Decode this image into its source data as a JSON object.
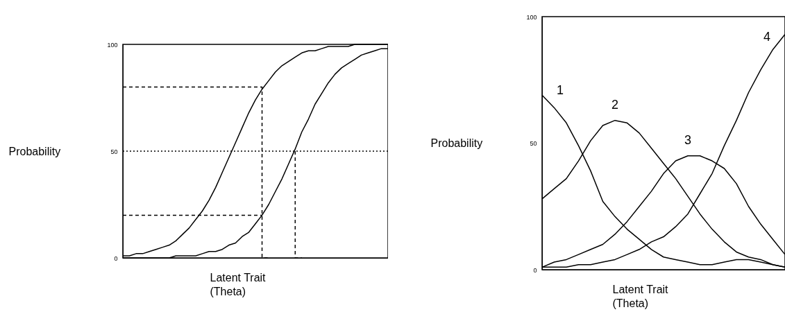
{
  "chart_data": [
    {
      "type": "line",
      "ylabel": "Probability",
      "xlabel": "Latent Trait\n(Theta)",
      "ylim": [
        0,
        100
      ],
      "yticks": [
        0,
        50,
        100
      ],
      "tick_labels": "y",
      "grid": false,
      "marker": "none",
      "categories": [
        null,
        null,
        null,
        null,
        null,
        null,
        null,
        null,
        null,
        null,
        null,
        null,
        null,
        null,
        null,
        null,
        null,
        null,
        null,
        null,
        null,
        null,
        null,
        null,
        null,
        null,
        null,
        null,
        null,
        null,
        null,
        null,
        null,
        null,
        null,
        null,
        null,
        null,
        null,
        null,
        null
      ],
      "series": [
        {
          "color": "#000000",
          "values": [
            1,
            1,
            2,
            2,
            3,
            4,
            5,
            6,
            8,
            11,
            14,
            18,
            22,
            27,
            33,
            40,
            47,
            54,
            61,
            68,
            74,
            79,
            83,
            87,
            90,
            92,
            94,
            96,
            97,
            97,
            98,
            99,
            99,
            99,
            99,
            100,
            100,
            100,
            100,
            100,
            100
          ]
        },
        {
          "color": "#000000",
          "values": [
            0,
            0,
            0,
            0,
            0,
            0,
            0,
            0,
            1,
            1,
            1,
            1,
            2,
            3,
            3,
            4,
            6,
            7,
            10,
            12,
            16,
            20,
            25,
            31,
            37,
            44,
            51,
            59,
            65,
            72,
            77,
            82,
            86,
            89,
            91,
            93,
            95,
            96,
            97,
            98,
            98
          ]
        },
        {
          "type": "step",
          "color": "#000000",
          "line_style": "dashed",
          "values": [
            80,
            80,
            80,
            80,
            80,
            80,
            80,
            80,
            80,
            80,
            80,
            80,
            80,
            80,
            80,
            80,
            80,
            80,
            80,
            80,
            80,
            80,
            0,
            null,
            null,
            null,
            null,
            null,
            null,
            null,
            null,
            null,
            null,
            null,
            null,
            null,
            null,
            null,
            null,
            null,
            null
          ]
        },
        {
          "color": "#000000",
          "line_style": "dashed",
          "values": [
            20,
            20,
            20,
            20,
            20,
            20,
            20,
            20,
            20,
            20,
            20,
            20,
            20,
            20,
            20,
            20,
            20,
            20,
            20,
            20,
            20,
            20,
            null,
            null,
            null,
            null,
            null,
            null,
            null,
            null,
            null,
            null,
            null,
            null,
            null,
            null,
            null,
            null,
            null,
            null,
            null
          ]
        },
        {
          "type": "step",
          "color": "#000000",
          "line_style": "dashed",
          "values": [
            null,
            null,
            null,
            null,
            null,
            null,
            null,
            null,
            null,
            null,
            null,
            null,
            null,
            null,
            null,
            null,
            null,
            null,
            null,
            null,
            null,
            null,
            null,
            null,
            null,
            null,
            50,
            0,
            null,
            null,
            null,
            null,
            null,
            null,
            null,
            null,
            null,
            null,
            null,
            null,
            null
          ]
        }
      ],
      "ref_lines": [
        {
          "axis": "y",
          "value": 50,
          "color": "#000000",
          "line_style": "dotted"
        }
      ]
    },
    {
      "type": "line",
      "ylabel": "Probability",
      "xlabel": "Latent Trait\n(Theta)",
      "ylim": [
        0,
        100
      ],
      "yticks": [
        0,
        50,
        100
      ],
      "tick_labels": "y",
      "grid": false,
      "marker": "none",
      "categories": [
        null,
        null,
        null,
        null,
        null,
        null,
        null,
        null,
        null,
        null,
        null,
        null,
        null,
        null,
        null,
        null,
        null,
        null,
        null,
        null,
        null
      ],
      "series": [
        {
          "name": "1",
          "color": "#000000",
          "values": [
            69,
            64,
            58,
            49,
            39,
            27,
            21,
            16,
            12,
            8,
            5,
            4,
            3,
            2,
            2,
            3,
            4,
            4,
            3,
            2,
            1
          ]
        },
        {
          "name": "2",
          "color": "#000000",
          "values": [
            28,
            32,
            36,
            43,
            51,
            57,
            59,
            58,
            54,
            48,
            42,
            36,
            29,
            22,
            16,
            11,
            7,
            5,
            4,
            2,
            1
          ]
        },
        {
          "name": "3",
          "color": "#000000",
          "values": [
            1,
            3,
            4,
            6,
            8,
            10,
            14,
            19,
            25,
            31,
            38,
            43,
            45,
            45,
            43,
            40,
            34,
            25,
            18,
            12,
            6
          ]
        },
        {
          "name": "4",
          "color": "#000000",
          "values": [
            1,
            1,
            1,
            2,
            2,
            3,
            4,
            6,
            8,
            11,
            13,
            17,
            22,
            30,
            38,
            49,
            59,
            70,
            79,
            87,
            93
          ]
        }
      ]
    }
  ]
}
